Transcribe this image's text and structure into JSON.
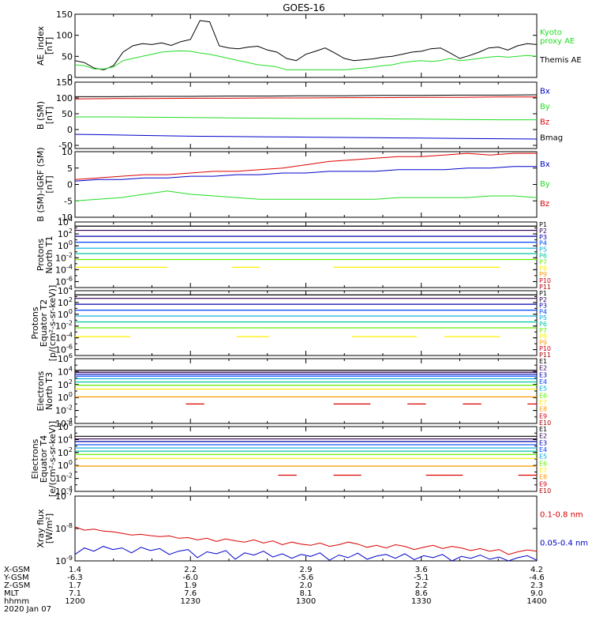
{
  "title": "GOES-16",
  "colors": {
    "black": "#000000",
    "green": "#22dd22",
    "red": "#dd0000",
    "blue": "#0000cc",
    "purple": "#330055",
    "magenta": "#aa00aa",
    "navy": "#0000aa",
    "royal": "#0044ff",
    "skyblue": "#00aadd",
    "cyan": "#00dddd",
    "teal": "#00c8a0",
    "lime": "#66ee00",
    "yellow": "#ffee00",
    "orange": "#ff9900",
    "darkorange": "#ee5500",
    "crimson": "#cc0011",
    "darkred": "#aa0000"
  },
  "time_axis": {
    "labels": [
      {
        "row": "X-GSM",
        "values": [
          "1.4",
          "2.2",
          "2.9",
          "3.6",
          "4.2"
        ]
      },
      {
        "row": "Y-GSM",
        "values": [
          "-6.3",
          "-6.0",
          "-5.6",
          "-5.1",
          "-4.6"
        ]
      },
      {
        "row": "Z-GSM",
        "values": [
          "1.7",
          "1.9",
          "2.0",
          "2.2",
          "2.3"
        ]
      },
      {
        "row": "MLT",
        "values": [
          "7.1",
          "7.6",
          "8.1",
          "8.6",
          "9.0"
        ]
      },
      {
        "row": "hhmm",
        "values": [
          "1200",
          "1230",
          "1300",
          "1330",
          "1400"
        ]
      }
    ],
    "date": "2020 Jan 07"
  },
  "chart_data": [
    {
      "type": "line",
      "ylabel": [
        "AE_index",
        "[nT]"
      ],
      "ylim": [
        0,
        150
      ],
      "yticks": [
        "0",
        "50",
        "100",
        "150"
      ],
      "legend": [
        {
          "name": "Kyoto proxy AE",
          "lines": [
            "Kyoto",
            "proxy AE"
          ],
          "color": "green"
        },
        {
          "name": "Themis AE",
          "lines": [
            "Themis AE"
          ],
          "color": "black"
        }
      ],
      "series": [
        {
          "name": "Themis AE",
          "color": "black",
          "values": [
            40,
            35,
            22,
            18,
            28,
            60,
            75,
            80,
            78,
            82,
            76,
            85,
            90,
            135,
            132,
            75,
            70,
            68,
            72,
            74,
            65,
            60,
            45,
            40,
            55,
            62,
            70,
            58,
            45,
            40,
            42,
            44,
            48,
            50,
            55,
            60,
            62,
            68,
            70,
            58,
            45,
            52,
            60,
            70,
            72,
            65,
            75,
            80,
            78
          ]
        },
        {
          "name": "Kyoto proxy AE",
          "color": "green",
          "values": [
            30,
            28,
            20,
            20,
            25,
            40,
            45,
            50,
            55,
            60,
            62,
            63,
            62,
            58,
            55,
            50,
            45,
            40,
            35,
            30,
            28,
            25,
            18,
            18,
            18,
            18,
            18,
            18,
            18,
            20,
            22,
            25,
            28,
            30,
            35,
            38,
            40,
            38,
            40,
            45,
            40,
            42,
            45,
            48,
            50,
            48,
            50,
            52,
            50
          ]
        }
      ]
    },
    {
      "type": "line",
      "ylabel": [
        "B (SM)",
        "[nT]"
      ],
      "ylim": [
        -60,
        150
      ],
      "yticks": [
        "-50",
        "0",
        "50",
        "100",
        "150"
      ],
      "legend": [
        {
          "name": "Bx",
          "lines": [
            "Bx"
          ],
          "color": "blue"
        },
        {
          "name": "By",
          "lines": [
            "By"
          ],
          "color": "green"
        },
        {
          "name": "Bz",
          "lines": [
            "Bz"
          ],
          "color": "red"
        },
        {
          "name": "Bmag",
          "lines": [
            "Bmag"
          ],
          "color": "black"
        }
      ],
      "series": [
        {
          "name": "Bmag",
          "color": "black",
          "values": [
            104,
            104,
            105,
            105,
            106,
            106,
            107,
            107,
            108,
            108,
            109,
            109,
            110
          ]
        },
        {
          "name": "Bz",
          "color": "red",
          "values": [
            97,
            98,
            98,
            99,
            99,
            100,
            100,
            101,
            101,
            102,
            102,
            103,
            103
          ]
        },
        {
          "name": "By",
          "color": "green",
          "values": [
            40,
            40,
            39,
            38,
            37,
            36,
            35,
            35,
            34,
            33,
            32,
            31,
            31
          ]
        },
        {
          "name": "Bx",
          "color": "blue",
          "values": [
            -15,
            -17,
            -19,
            -21,
            -22,
            -23,
            -24,
            -25,
            -26,
            -27,
            -28,
            -29,
            -30
          ]
        }
      ]
    },
    {
      "type": "line",
      "ylabel": [
        "B (SM)-IGRF (SM)",
        "[nT]"
      ],
      "ylim": [
        -10,
        10
      ],
      "yticks": [
        "-10",
        "-5",
        "0",
        "5",
        "10"
      ],
      "legend": [
        {
          "name": "Bx",
          "lines": [
            "Bx"
          ],
          "color": "blue"
        },
        {
          "name": "By",
          "lines": [
            "By"
          ],
          "color": "green"
        },
        {
          "name": "Bz",
          "lines": [
            "Bz"
          ],
          "color": "red"
        }
      ],
      "series": [
        {
          "name": "Bz",
          "color": "red",
          "values": [
            1.5,
            2,
            2.5,
            3,
            3,
            3.5,
            4,
            4,
            4.5,
            5,
            6,
            7,
            7.5,
            8,
            8.5,
            8.5,
            9,
            9.5,
            9,
            9.5,
            9.5
          ]
        },
        {
          "name": "Bx",
          "color": "blue",
          "values": [
            1,
            1.5,
            1.5,
            2,
            2,
            2.5,
            2.5,
            3,
            3,
            3.5,
            3.5,
            4,
            4,
            4,
            4.5,
            4.5,
            4.5,
            5,
            5,
            5.5,
            5.5
          ]
        },
        {
          "name": "By",
          "color": "green",
          "values": [
            -5,
            -4.5,
            -4,
            -3,
            -2,
            -3,
            -3.5,
            -4,
            -4.5,
            -4.5,
            -4.5,
            -4.5,
            -4.5,
            -4.5,
            -4,
            -4,
            -4,
            -4,
            -3.5,
            -3.5,
            -4
          ]
        }
      ]
    },
    {
      "type": "line",
      "ylabel": [
        "Protons",
        "North T1"
      ],
      "ylog": true,
      "ylim_exp": [
        -7,
        4
      ],
      "yticks": [
        "10^4",
        "10^2",
        "10^0",
        "10^-2",
        "10^-4",
        "10^-6"
      ],
      "legend": [
        {
          "name": "P1",
          "color": "black"
        },
        {
          "name": "P2",
          "color": "purple"
        },
        {
          "name": "P3",
          "color": "navy"
        },
        {
          "name": "P4",
          "color": "royal"
        },
        {
          "name": "P5",
          "color": "skyblue"
        },
        {
          "name": "P6",
          "color": "teal"
        },
        {
          "name": "P7",
          "color": "lime"
        },
        {
          "name": "P8",
          "color": "yellow"
        },
        {
          "name": "P9",
          "color": "orange"
        },
        {
          "name": "P10",
          "color": "crimson"
        },
        {
          "name": "P11",
          "color": "darkred"
        }
      ],
      "series": [
        {
          "name": "P1",
          "color": "black",
          "level": 3.3
        },
        {
          "name": "P2",
          "color": "purple",
          "level": 2.6
        },
        {
          "name": "P3",
          "color": "navy",
          "level": 1.6
        },
        {
          "name": "P4",
          "color": "royal",
          "level": 0.6
        },
        {
          "name": "P5",
          "color": "skyblue",
          "level": -0.4
        },
        {
          "name": "P6",
          "color": "teal",
          "level": -1.3
        },
        {
          "name": "P7",
          "color": "lime",
          "level": -2.3
        },
        {
          "name": "P8",
          "color": "yellow",
          "level": -3.6,
          "segments": [
            [
              0,
              0.2
            ],
            [
              0.34,
              0.4
            ],
            [
              0.56,
              0.92
            ]
          ]
        }
      ]
    },
    {
      "type": "line",
      "ylabel": [
        "Protons",
        "Equator T2",
        "[p/(cm²-s-sr-keV)]"
      ],
      "ylog": true,
      "ylim_exp": [
        -7,
        4
      ],
      "yticks": [
        "10^4",
        "10^2",
        "10^0",
        "10^-2",
        "10^-4",
        "10^-6"
      ],
      "legend": [
        {
          "name": "P1",
          "color": "black"
        },
        {
          "name": "P2",
          "color": "purple"
        },
        {
          "name": "P3",
          "color": "navy"
        },
        {
          "name": "P4",
          "color": "royal"
        },
        {
          "name": "P5",
          "color": "skyblue"
        },
        {
          "name": "P6",
          "color": "teal"
        },
        {
          "name": "P7",
          "color": "lime"
        },
        {
          "name": "P8",
          "color": "yellow"
        },
        {
          "name": "P9",
          "color": "orange"
        },
        {
          "name": "P10",
          "color": "crimson"
        },
        {
          "name": "P11",
          "color": "darkred"
        }
      ],
      "series": [
        {
          "name": "P1",
          "color": "black",
          "level": 3.3
        },
        {
          "name": "P2",
          "color": "purple",
          "level": 2.7
        },
        {
          "name": "P3",
          "color": "navy",
          "level": 1.7
        },
        {
          "name": "P4",
          "color": "royal",
          "level": 0.7
        },
        {
          "name": "P5",
          "color": "skyblue",
          "level": -0.3
        },
        {
          "name": "P6",
          "color": "teal",
          "level": -1.3
        },
        {
          "name": "P7",
          "color": "lime",
          "level": -2.3
        },
        {
          "name": "P8",
          "color": "yellow",
          "level": -3.8,
          "segments": [
            [
              0,
              0.12
            ],
            [
              0.35,
              0.42
            ],
            [
              0.6,
              0.74
            ],
            [
              0.8,
              0.92
            ]
          ]
        }
      ]
    },
    {
      "type": "line",
      "ylabel": [
        "Electrons",
        "North T3"
      ],
      "ylog": true,
      "ylim_exp": [
        -4,
        6
      ],
      "yticks": [
        "10^6",
        "10^4",
        "10^2",
        "10^0",
        "10^-2",
        "10^-4"
      ],
      "legend": [
        {
          "name": "E1",
          "color": "black"
        },
        {
          "name": "E2",
          "color": "purple"
        },
        {
          "name": "E3",
          "color": "navy"
        },
        {
          "name": "E4",
          "color": "royal"
        },
        {
          "name": "E5",
          "color": "skyblue"
        },
        {
          "name": "E6",
          "color": "lime"
        },
        {
          "name": "E7",
          "color": "yellow"
        },
        {
          "name": "E8",
          "color": "orange"
        },
        {
          "name": "E9",
          "color": "crimson"
        },
        {
          "name": "E10",
          "color": "darkred"
        }
      ],
      "series": [
        {
          "name": "E1",
          "color": "black",
          "level": 4.2
        },
        {
          "name": "E2",
          "color": "purple",
          "level": 3.9
        },
        {
          "name": "E3",
          "color": "navy",
          "level": 3.6
        },
        {
          "name": "E4",
          "color": "royal",
          "level": 3.3
        },
        {
          "name": "E5",
          "color": "skyblue",
          "level": 2.9
        },
        {
          "name": "E6",
          "color": "teal",
          "level": 2.4
        },
        {
          "name": "E7",
          "color": "lime",
          "level": 1.9
        },
        {
          "name": "E8",
          "color": "yellow",
          "level": 1.3
        },
        {
          "name": "E9",
          "color": "orange",
          "level": 0.1
        },
        {
          "name": "E10",
          "color": "red",
          "level": -1.0,
          "segments": [
            [
              0.24,
              0.28
            ],
            [
              0.56,
              0.64
            ],
            [
              0.72,
              0.76
            ],
            [
              0.84,
              0.88
            ],
            [
              0.98,
              1
            ]
          ]
        }
      ]
    },
    {
      "type": "line",
      "ylabel": [
        "Electrons",
        "Equator T4",
        "[e/(cm²-s-sr-keV)]"
      ],
      "ylog": true,
      "ylim_exp": [
        -4,
        6
      ],
      "yticks": [
        "10^6",
        "10^4",
        "10^2",
        "10^0",
        "10^-2",
        "10^-4"
      ],
      "legend": [
        {
          "name": "E1",
          "color": "black"
        },
        {
          "name": "E2",
          "color": "purple"
        },
        {
          "name": "E3",
          "color": "navy"
        },
        {
          "name": "E4",
          "color": "royal"
        },
        {
          "name": "E5",
          "color": "skyblue"
        },
        {
          "name": "E6",
          "color": "lime"
        },
        {
          "name": "E7",
          "color": "yellow"
        },
        {
          "name": "E8",
          "color": "orange"
        },
        {
          "name": "E9",
          "color": "crimson"
        },
        {
          "name": "E10",
          "color": "darkred"
        }
      ],
      "series": [
        {
          "name": "E1",
          "color": "black",
          "level": 4.5
        },
        {
          "name": "E2",
          "color": "purple",
          "level": 4.1
        },
        {
          "name": "E3",
          "color": "navy",
          "level": 3.7
        },
        {
          "name": "E4",
          "color": "royal",
          "level": 3.2
        },
        {
          "name": "E5",
          "color": "skyblue",
          "level": 2.7
        },
        {
          "name": "E6",
          "color": "teal",
          "level": 2.2
        },
        {
          "name": "E7",
          "color": "lime",
          "level": 1.7
        },
        {
          "name": "E8",
          "color": "yellow",
          "level": 1.1
        },
        {
          "name": "E9",
          "color": "orange",
          "level": -0.1
        },
        {
          "name": "E10",
          "color": "red",
          "level": -1.5,
          "segments": [
            [
              0.44,
              0.48
            ],
            [
              0.56,
              0.62
            ],
            [
              0.76,
              0.84
            ],
            [
              0.96,
              1
            ]
          ]
        }
      ]
    },
    {
      "type": "line",
      "ylabel": [
        "Xray flux",
        "[W/m²]"
      ],
      "ylog": true,
      "ylim_exp": [
        -9,
        -7
      ],
      "yticks": [
        "10^-7",
        "10^-8",
        "10^-9"
      ],
      "legend": [
        {
          "name": "0.1-0.8 nm",
          "lines": [
            "0.1-0.8 nm"
          ],
          "color": "red"
        },
        {
          "name": "0.05-0.4 nm",
          "lines": [
            "0.05-0.4 nm"
          ],
          "color": "blue"
        }
      ],
      "series": [
        {
          "name": "0.1-0.8 nm",
          "color": "red",
          "values_exp": [
            -7.95,
            -8.05,
            -8.02,
            -8.08,
            -8.1,
            -8.15,
            -8.2,
            -8.18,
            -8.22,
            -8.25,
            -8.23,
            -8.3,
            -8.28,
            -8.35,
            -8.3,
            -8.4,
            -8.32,
            -8.38,
            -8.42,
            -8.35,
            -8.45,
            -8.38,
            -8.5,
            -8.42,
            -8.48,
            -8.52,
            -8.45,
            -8.55,
            -8.5,
            -8.42,
            -8.48,
            -8.58,
            -8.52,
            -8.6,
            -8.5,
            -8.55,
            -8.65,
            -8.58,
            -8.52,
            -8.62,
            -8.55,
            -8.6,
            -8.68,
            -8.62,
            -8.7,
            -8.65,
            -8.8,
            -8.72,
            -8.66,
            -8.7
          ]
        },
        {
          "name": "0.05-0.4 nm",
          "color": "blue",
          "values_exp": [
            -8.8,
            -8.6,
            -8.7,
            -8.55,
            -8.65,
            -8.6,
            -8.75,
            -8.58,
            -8.68,
            -8.62,
            -8.8,
            -8.7,
            -8.65,
            -8.9,
            -8.72,
            -8.78,
            -8.68,
            -8.95,
            -8.75,
            -8.82,
            -8.7,
            -8.88,
            -8.78,
            -8.92,
            -8.8,
            -8.86,
            -8.75,
            -8.98,
            -8.82,
            -8.9,
            -8.76,
            -8.95,
            -8.85,
            -8.8,
            -8.92,
            -8.78,
            -8.96,
            -8.84,
            -8.9,
            -8.8,
            -9.0,
            -8.86,
            -8.92,
            -8.82,
            -8.95,
            -8.88,
            -9.0,
            -8.9,
            -8.84,
            -8.98
          ]
        }
      ]
    }
  ]
}
